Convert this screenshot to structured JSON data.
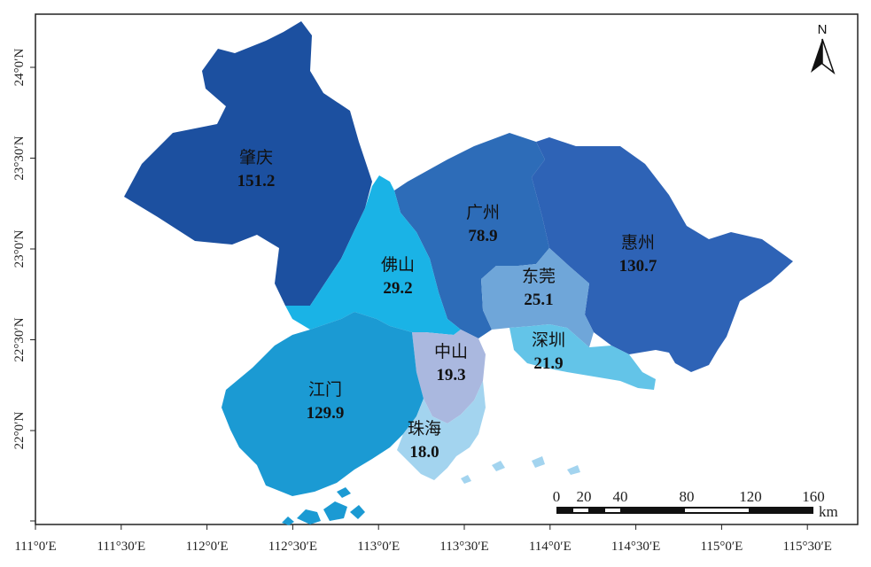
{
  "map": {
    "axis_x_labels": [
      "111°0′E",
      "111°30′E",
      "112°0′E",
      "112°30′E",
      "113°0′E",
      "113°30′E",
      "114°0′E",
      "114°30′E",
      "115°0′E",
      "115°30′E"
    ],
    "axis_y_labels": [
      "24°0′N",
      "23°30′N",
      "23°0′N",
      "22°30′N",
      "22°0′N"
    ],
    "north_label": "N",
    "scale_bar": {
      "ticks": [
        "0",
        "20",
        "40",
        "80",
        "120",
        "160"
      ],
      "unit": "km"
    },
    "regions": [
      {
        "key": "zhaoqing",
        "name": "肇庆",
        "value": "151.2",
        "color": "#1c50a0"
      },
      {
        "key": "guangzhou",
        "name": "广州",
        "value": "78.9",
        "color": "#2d6cb8"
      },
      {
        "key": "huizhou",
        "name": "惠州",
        "value": "130.7",
        "color": "#2e63b6"
      },
      {
        "key": "foshan",
        "name": "佛山",
        "value": "29.2",
        "color": "#1ab3e6"
      },
      {
        "key": "dongguan",
        "name": "东莞",
        "value": "25.1",
        "color": "#6fa6d9"
      },
      {
        "key": "shenzhen",
        "name": "深圳",
        "value": "21.9",
        "color": "#63c4e8"
      },
      {
        "key": "zhongshan",
        "name": "中山",
        "value": "19.3",
        "color": "#aab8df"
      },
      {
        "key": "jiangmen",
        "name": "江门",
        "value": "129.9",
        "color": "#1b9ad3"
      },
      {
        "key": "zhuhai",
        "name": "珠海",
        "value": "18.0",
        "color": "#a3d4ef"
      }
    ]
  }
}
